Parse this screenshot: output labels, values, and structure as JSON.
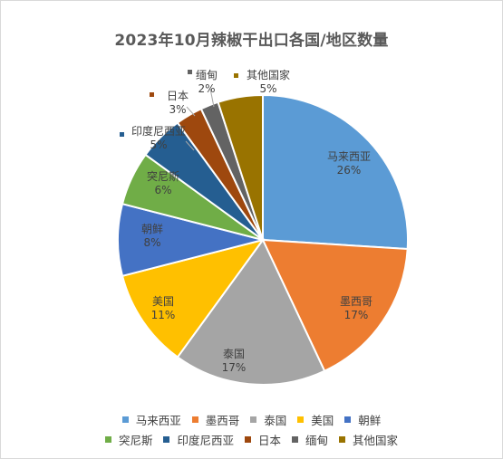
{
  "chart_data": {
    "type": "pie",
    "title": "2023年10月辣椒干出口各国/地区数量",
    "unit": "%",
    "legend_position": "bottom",
    "slices": [
      {
        "label": "马来西亚",
        "value": 26,
        "display": "26%",
        "color": "#5B9BD5"
      },
      {
        "label": "墨西哥",
        "value": 17,
        "display": "17%",
        "color": "#ED7D31"
      },
      {
        "label": "泰国",
        "value": 17,
        "display": "17%",
        "color": "#A5A5A5"
      },
      {
        "label": "美国",
        "value": 11,
        "display": "11%",
        "color": "#FFC000"
      },
      {
        "label": "朝鲜",
        "value": 8,
        "display": "8%",
        "color": "#4472C4"
      },
      {
        "label": "突尼斯",
        "value": 6,
        "display": "6%",
        "color": "#70AD47"
      },
      {
        "label": "印度尼西亚",
        "value": 5,
        "display": "5%",
        "color": "#255E91"
      },
      {
        "label": "日本",
        "value": 3,
        "display": "3%",
        "color": "#9E480E"
      },
      {
        "label": "缅甸",
        "value": 2,
        "display": "2%",
        "color": "#636363"
      },
      {
        "label": "其他国家",
        "value": 5,
        "display": "5%",
        "color": "#997300"
      }
    ]
  },
  "legend_rows": [
    [
      0,
      1,
      2,
      3,
      4
    ],
    [
      5,
      6,
      7,
      8,
      9
    ]
  ]
}
